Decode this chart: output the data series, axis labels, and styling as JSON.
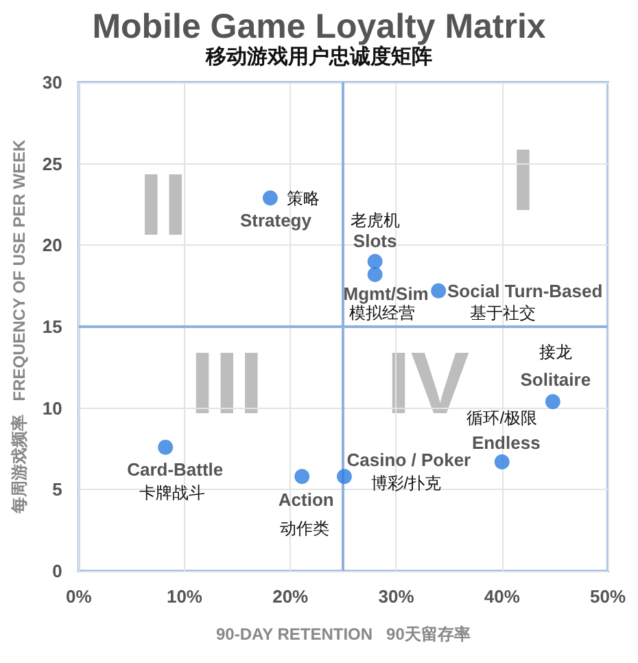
{
  "chart_data": {
    "type": "scatter",
    "title": "Mobile Game Loyalty Matrix",
    "subtitle": "移动游戏用户忠诚度矩阵",
    "xlabel": "90-DAY RETENTION   90天留存率",
    "ylabel": "每周游戏频率   FREQUENCY OF USE PER WEEK",
    "x": [
      18.1,
      28.0,
      28.0,
      34.0,
      44.8,
      40.0,
      8.2,
      21.1,
      25.1
    ],
    "values": [
      22.9,
      19.0,
      18.2,
      17.2,
      10.4,
      6.7,
      7.6,
      5.8,
      5.8
    ],
    "color": "#2d7de0",
    "marker": "circle",
    "xlim": [
      0,
      50
    ],
    "xticks": [
      {
        "value": 0,
        "label": "0%"
      },
      {
        "value": 10,
        "label": "10%"
      },
      {
        "value": 20,
        "label": "20%"
      },
      {
        "value": 30,
        "label": "30%"
      },
      {
        "value": 40,
        "label": "40%"
      },
      {
        "value": 50,
        "label": "50%"
      }
    ],
    "ylim": [
      0,
      30
    ],
    "yticks": [
      0,
      5,
      10,
      15,
      20,
      25,
      30
    ],
    "grid": true,
    "ref_lines": [
      {
        "axis": "x",
        "value": 25,
        "color": "#8fb1e0"
      },
      {
        "axis": "y",
        "value": 15,
        "color": "#8fb1e0"
      }
    ],
    "annotations": [
      "II",
      "I",
      "III",
      "IV",
      {
        "text": "策略",
        "x": 18.1,
        "y": 22.9
      },
      {
        "text": "Strategy",
        "x": 18.1,
        "y": 22.9
      },
      {
        "text": "老虎机",
        "x": 28.0,
        "y": 19.0
      },
      {
        "text": "Slots",
        "x": 28.0,
        "y": 19.0
      },
      {
        "text": "Mgmt/Sim",
        "x": 28.0,
        "y": 18.2
      },
      {
        "text": "模拟经营",
        "x": 28.0,
        "y": 18.2
      },
      {
        "text": "Social Turn-Based",
        "x": 34.0,
        "y": 17.2
      },
      {
        "text": "基于社交",
        "x": 34.0,
        "y": 17.2
      },
      {
        "text": "接龙",
        "x": 44.8,
        "y": 10.4
      },
      {
        "text": "Solitaire",
        "x": 44.8,
        "y": 10.4
      },
      {
        "text": "循环/极限",
        "x": 40.0,
        "y": 6.7
      },
      {
        "text": "Endless",
        "x": 40.0,
        "y": 6.7
      },
      {
        "text": "Card-Battle",
        "x": 8.2,
        "y": 7.6
      },
      {
        "text": "卡牌战斗",
        "x": 8.2,
        "y": 7.6
      },
      {
        "text": "Action",
        "x": 21.1,
        "y": 5.8
      },
      {
        "text": "动作类",
        "x": 21.1,
        "y": 5.8
      },
      {
        "text": "Casino / Poker",
        "x": 25.1,
        "y": 5.8
      },
      {
        "text": "博彩/扑克",
        "x": 25.1,
        "y": 5.8
      }
    ]
  }
}
